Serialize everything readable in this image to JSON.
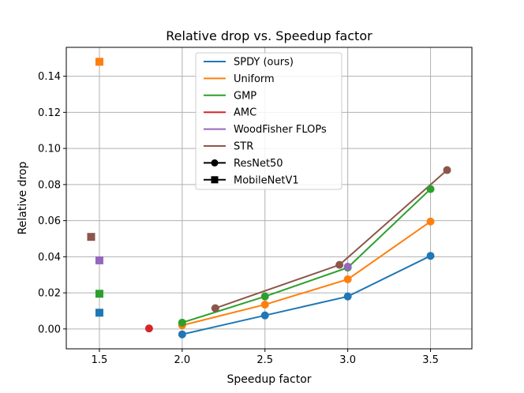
{
  "chart_data": {
    "type": "line",
    "title": "Relative drop vs. Speedup factor",
    "xlabel": "Speedup factor",
    "ylabel": "Relative drop",
    "xlim": [
      1.3,
      3.75
    ],
    "ylim": [
      -0.011,
      0.156
    ],
    "xticks": [
      1.5,
      2.0,
      2.5,
      3.0,
      3.5
    ],
    "xtick_labels": [
      "1.5",
      "2.0",
      "2.5",
      "3.0",
      "3.5"
    ],
    "yticks": [
      0.0,
      0.02,
      0.04,
      0.06,
      0.08,
      0.1,
      0.12,
      0.14
    ],
    "ytick_labels": [
      "0.00",
      "0.02",
      "0.04",
      "0.06",
      "0.08",
      "0.10",
      "0.12",
      "0.14"
    ],
    "grid": true,
    "legend_position": "top-center",
    "series": [
      {
        "name": "SPDY (ours)",
        "color": "#1f77b4",
        "resnet50": {
          "x": [
            2.0,
            2.5,
            3.0,
            3.5
          ],
          "y": [
            -0.003,
            0.0075,
            0.018,
            0.0405
          ]
        },
        "mobilenetv1": {
          "x": [
            1.5
          ],
          "y": [
            0.009
          ]
        }
      },
      {
        "name": "Uniform",
        "color": "#ff7f0e",
        "resnet50": {
          "x": [
            2.0,
            2.5,
            3.0,
            3.5
          ],
          "y": [
            0.002,
            0.0135,
            0.0275,
            0.0595
          ]
        },
        "mobilenetv1": {
          "x": [
            1.5
          ],
          "y": [
            0.148
          ]
        }
      },
      {
        "name": "GMP",
        "color": "#2ca02c",
        "resnet50": {
          "x": [
            2.0,
            2.5,
            3.0,
            3.5
          ],
          "y": [
            0.0035,
            0.018,
            0.034,
            0.0775
          ]
        },
        "mobilenetv1": {
          "x": [
            1.5
          ],
          "y": [
            0.0195
          ]
        }
      },
      {
        "name": "AMC",
        "color": "#d62728",
        "resnet50": {
          "x": [
            1.8
          ],
          "y": [
            0.0003
          ]
        },
        "mobilenetv1": {
          "x": [],
          "y": []
        }
      },
      {
        "name": "WoodFisher FLOPs",
        "color": "#9467bd",
        "resnet50": {
          "x": [
            3.0
          ],
          "y": [
            0.0345
          ]
        },
        "mobilenetv1": {
          "x": [
            1.5
          ],
          "y": [
            0.038
          ]
        }
      },
      {
        "name": "STR",
        "color": "#8c564b",
        "resnet50": {
          "x": [
            2.2,
            2.95,
            3.6
          ],
          "y": [
            0.0115,
            0.0355,
            0.088
          ]
        },
        "mobilenetv1": {
          "x": [
            1.45
          ],
          "y": [
            0.051
          ]
        }
      }
    ],
    "marker_legend": [
      {
        "name": "ResNet50",
        "marker": "circle"
      },
      {
        "name": "MobileNetV1",
        "marker": "square"
      }
    ]
  }
}
